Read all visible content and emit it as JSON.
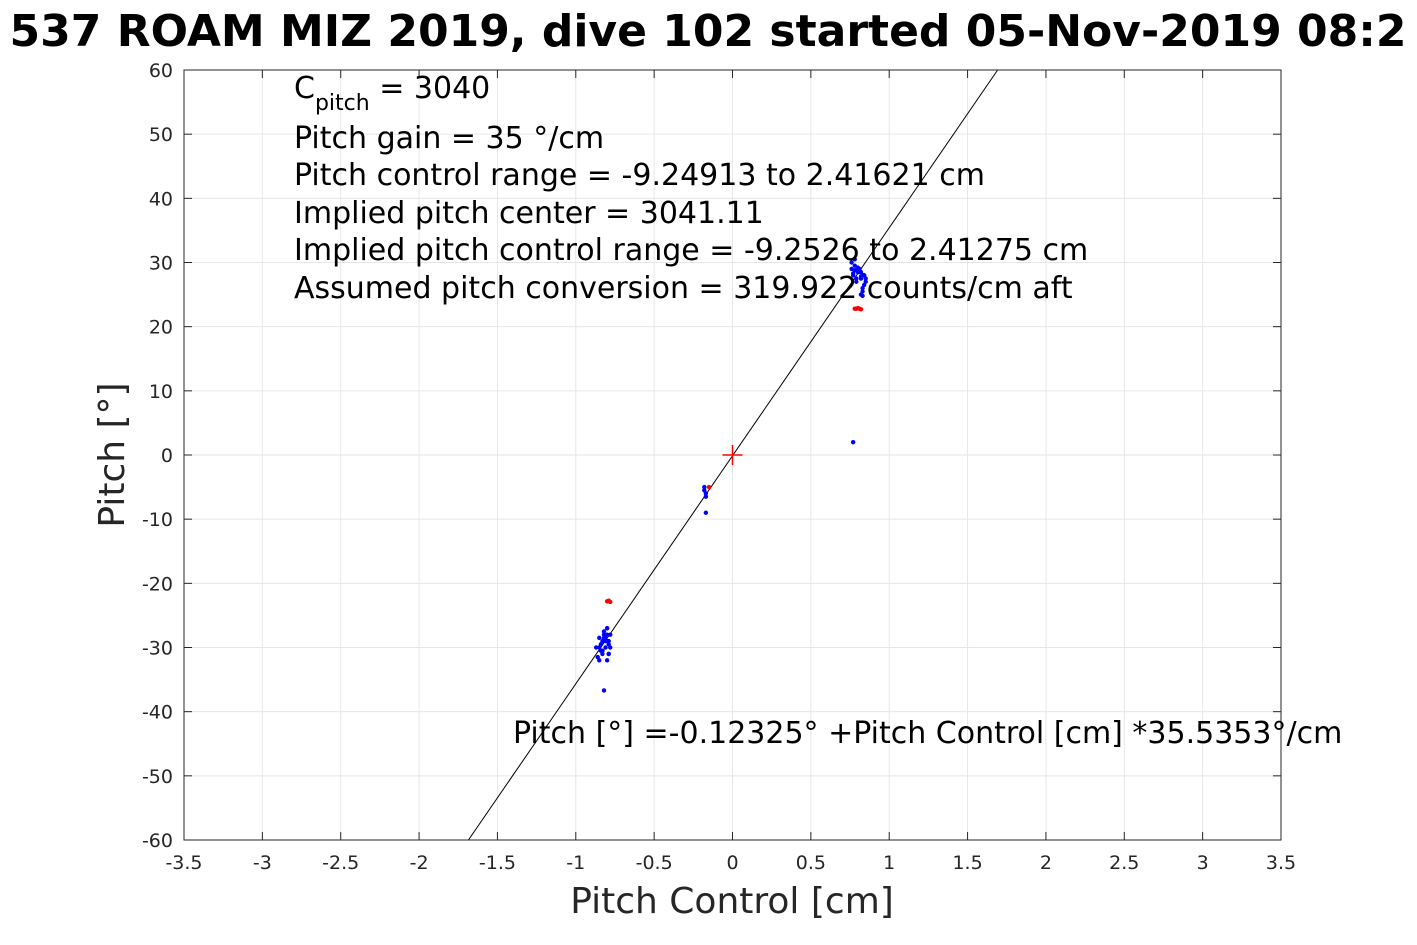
{
  "chart_data": {
    "type": "scatter",
    "title": "537 ROAM MIZ 2019, dive 102 started 05-Nov-2019 08:2",
    "xlabel": "Pitch Control [cm]",
    "ylabel": "Pitch [°]",
    "xlim": [
      -3.5,
      3.5
    ],
    "ylim": [
      -60,
      60
    ],
    "xticks": [
      -3.5,
      -3,
      -2.5,
      -2,
      -1.5,
      -1,
      -0.5,
      0,
      0.5,
      1,
      1.5,
      2,
      2.5,
      3,
      3.5
    ],
    "xtick_labels": [
      "-3.5",
      "-3",
      "-2.5",
      "-2",
      "-1.5",
      "-1",
      "-0.5",
      "0",
      "0.5",
      "1",
      "1.5",
      "2",
      "2.5",
      "3",
      "3.5"
    ],
    "yticks": [
      60,
      50,
      40,
      30,
      20,
      10,
      0,
      -10,
      -20,
      -30,
      -40,
      -50,
      -60
    ],
    "ytick_labels": [
      "60",
      "50",
      "40",
      "30",
      "20",
      "10",
      "0",
      "-10",
      "-20",
      "-30",
      "-40",
      "-50",
      "-60"
    ],
    "grid": true,
    "fit_line": {
      "intercept": -0.12325,
      "slope": 35.5353,
      "color": "#000000"
    },
    "center_marker": {
      "x": 0,
      "y": 0,
      "color": "#ff0000"
    },
    "series": [
      {
        "color": "#0000ff",
        "x": [
          -0.82,
          -0.8,
          -0.85,
          -0.83,
          -0.81,
          -0.79,
          -0.84,
          -0.82,
          -0.8,
          -0.86,
          -0.83,
          -0.81,
          -0.85,
          -0.8,
          -0.82,
          -0.84,
          -0.78,
          -0.79,
          -0.83,
          -0.81,
          -0.85,
          -0.87,
          -0.8,
          -0.82,
          -0.79,
          -0.78,
          -0.8,
          -0.83,
          -0.79,
          -0.18,
          -0.17,
          -0.18,
          -0.17,
          -0.17,
          0.76,
          0.78,
          0.8,
          0.82,
          0.77,
          0.79,
          0.81,
          0.83,
          0.85,
          0.78,
          0.8,
          0.82,
          0.84,
          0.76,
          0.79,
          0.81,
          0.83,
          0.78,
          0.8,
          0.82,
          0.84,
          0.77,
          0.79,
          0.81,
          0.83,
          0.85,
          0.82,
          0.83,
          0.77,
          0.84
        ],
        "y": [
          -28,
          -29,
          -30,
          -31,
          -28.5,
          -29.5,
          -30.5,
          -27.5,
          -28,
          -31.5,
          -29,
          -30,
          -32,
          -27,
          -28.5,
          -29.5,
          -30,
          -31,
          -30.5,
          -29,
          -28.5,
          -30,
          -32,
          -36.7,
          -31,
          -28,
          -27,
          -30.5,
          -29,
          -5,
          -6,
          -5.5,
          -6.5,
          -9,
          30,
          29.5,
          29,
          28.5,
          28,
          27.5,
          29,
          28,
          27,
          30.5,
          28.5,
          27.5,
          28,
          29,
          27.5,
          28.5,
          26,
          28.8,
          29.2,
          27.8,
          26.5,
          28.3,
          27,
          28.7,
          25.5,
          27.5,
          25,
          24.8,
          2,
          28
        ],
        "size": 3
      },
      {
        "color": "#ff0000",
        "x": [
          -0.8,
          -0.78,
          -0.79,
          0.79,
          0.8,
          0.81,
          0.82,
          0.78,
          -0.15
        ],
        "y": [
          -22.8,
          -22.9,
          -22.7,
          22.8,
          22.9,
          22.8,
          22.7,
          22.8,
          -5
        ],
        "size": 3
      }
    ],
    "annotations": {
      "c_pitch_symbol": "C",
      "c_pitch_subscript": "pitch",
      "c_pitch_value": " = 3040",
      "lines": [
        "Pitch gain = 35 °/cm",
        "Pitch control range = -9.24913 to 2.41621 cm",
        "Implied pitch center = 3041.11",
        "Implied pitch control range = -9.2526 to 2.41275 cm",
        "Assumed pitch conversion = 319.922 counts/cm aft"
      ],
      "fit_label": "Pitch [°] =-0.12325° +Pitch Control [cm] *35.5353°/cm"
    }
  }
}
